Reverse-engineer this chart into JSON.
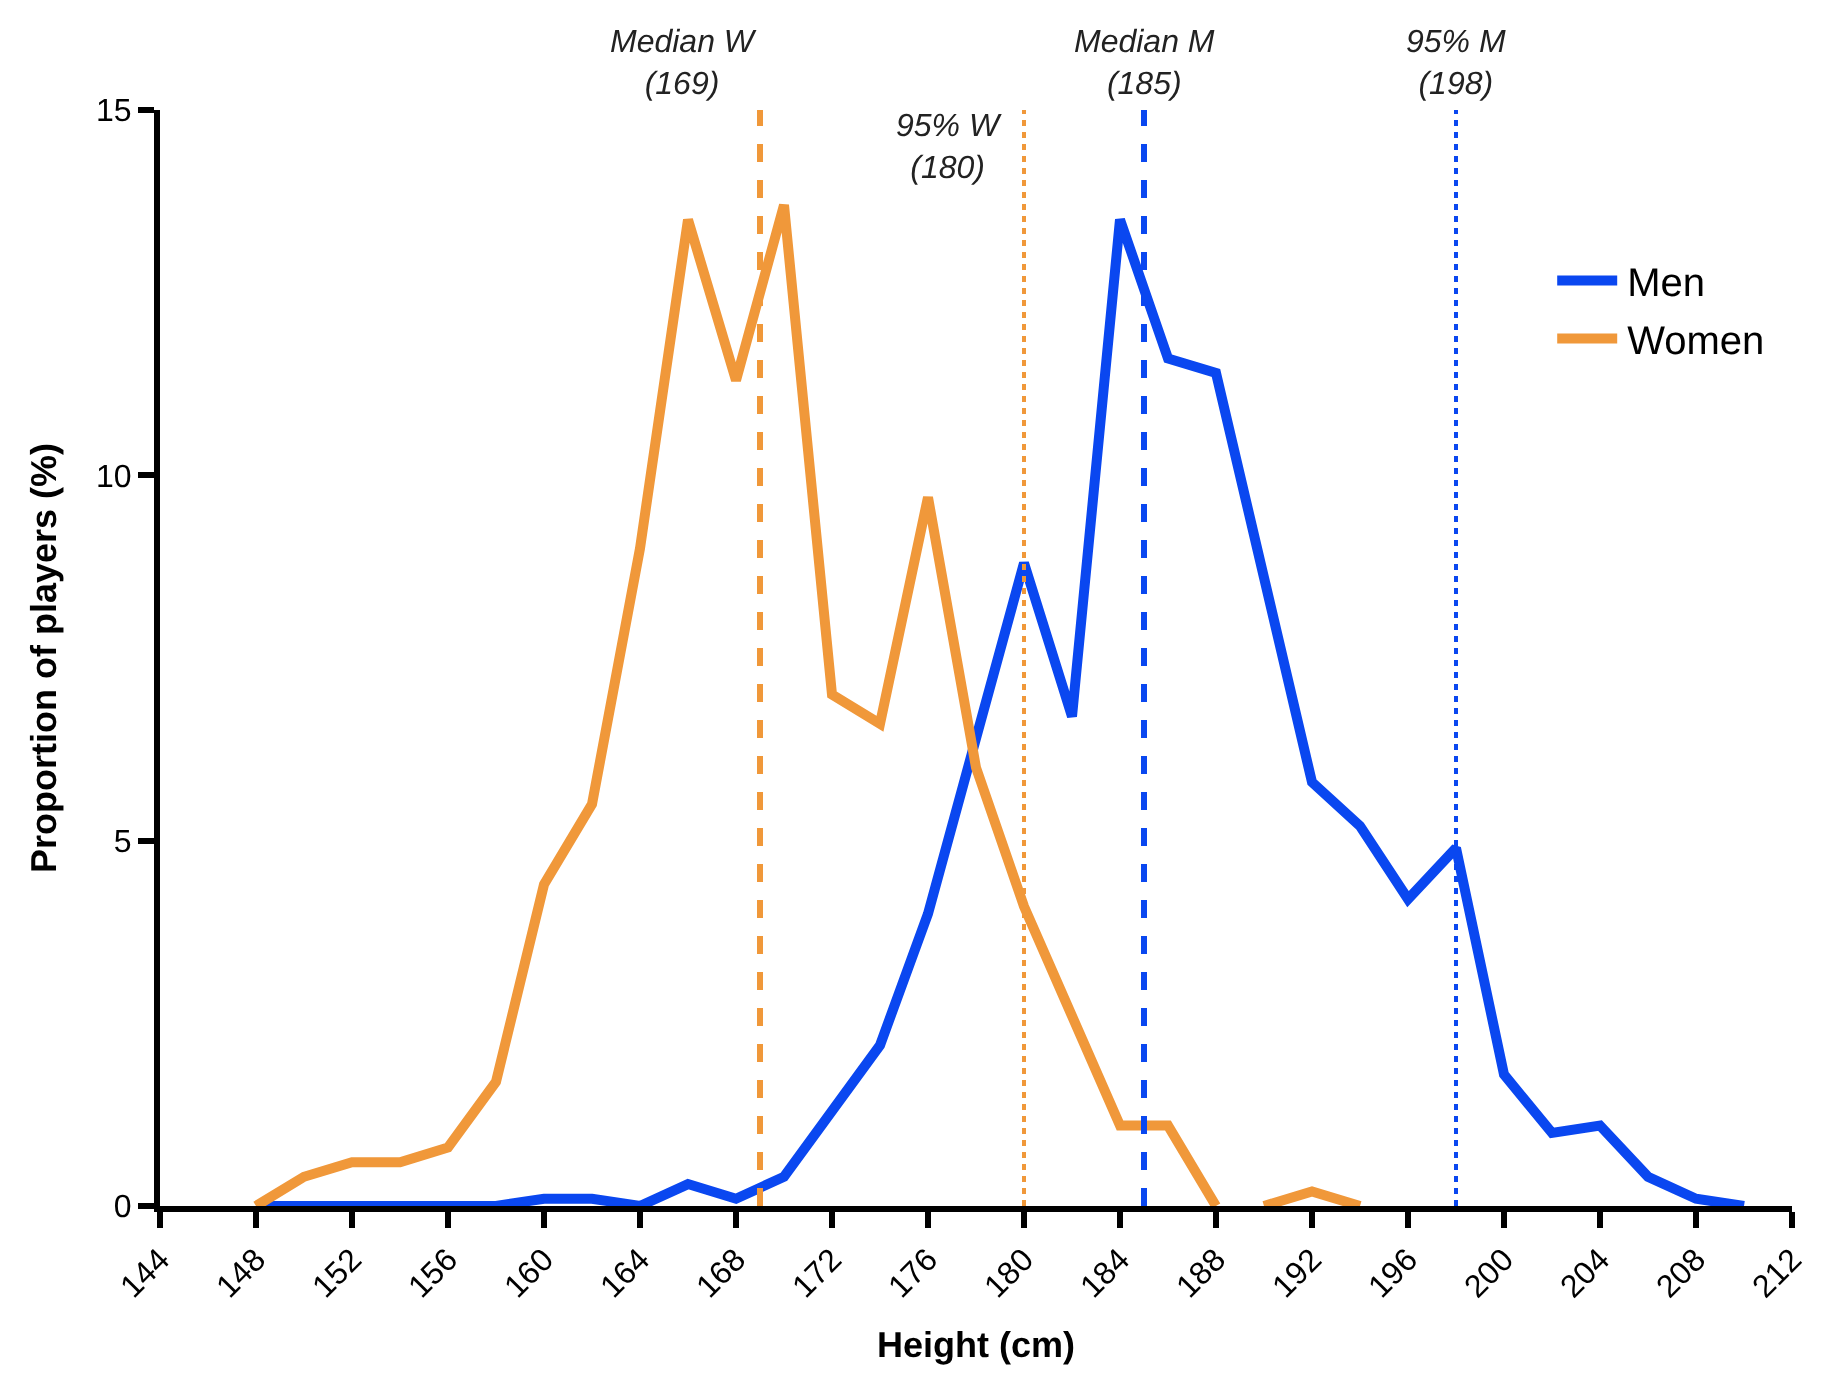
{
  "chart_data": {
    "type": "line",
    "xlabel": "Height (cm)",
    "ylabel": "Proportion of players (%)",
    "series": [
      {
        "name": "Men",
        "color": "#0a47f0",
        "x": [
          148,
          150,
          152,
          154,
          156,
          158,
          160,
          162,
          164,
          166,
          168,
          170,
          172,
          174,
          176,
          178,
          180,
          182,
          184,
          186,
          188,
          190,
          192,
          194,
          196,
          198,
          200,
          202,
          204,
          206,
          208,
          210
        ],
        "values": [
          0,
          0,
          0,
          0,
          0,
          0,
          0.1,
          0.1,
          0,
          0.3,
          0.1,
          0.4,
          1.3,
          2.2,
          4.0,
          6.4,
          8.8,
          6.7,
          13.5,
          11.6,
          11.4,
          8.6,
          5.8,
          5.2,
          4.2,
          4.9,
          1.8,
          1.0,
          1.1,
          0.4,
          0.1,
          0
        ]
      },
      {
        "name": "Women",
        "color": "#f0983a",
        "x": [
          148,
          150,
          152,
          154,
          156,
          158,
          160,
          162,
          164,
          166,
          168,
          170,
          172,
          174,
          176,
          178,
          180,
          182,
          184,
          186,
          188,
          189,
          190,
          192,
          194
        ],
        "values": [
          0,
          0.4,
          0.6,
          0.6,
          0.8,
          1.7,
          4.4,
          5.5,
          9.0,
          13.5,
          11.3,
          13.7,
          7.0,
          6.6,
          9.7,
          6.0,
          4.1,
          2.6,
          1.1,
          1.1,
          0,
          null,
          0,
          0.2,
          0
        ]
      }
    ],
    "ref_lines": [
      {
        "axis": "x",
        "value": 169,
        "label": "Median W\n(169)",
        "color": "#f0983a",
        "line_style": "dashed"
      },
      {
        "axis": "x",
        "value": 180,
        "label": "95% W\n(180)",
        "color": "#f0983a",
        "line_style": "dotted"
      },
      {
        "axis": "x",
        "value": 185,
        "label": "Median M\n(185)",
        "color": "#0a47f0",
        "line_style": "dashed"
      },
      {
        "axis": "x",
        "value": 198,
        "label": "95% M\n(198)",
        "color": "#0a47f0",
        "line_style": "dotted"
      }
    ],
    "xlim": [
      144,
      212
    ],
    "xticks": [
      144,
      148,
      152,
      156,
      160,
      164,
      168,
      172,
      176,
      180,
      184,
      188,
      192,
      196,
      200,
      204,
      208,
      212
    ],
    "ylim": [
      0,
      15
    ],
    "yticks": [
      0,
      5,
      10,
      15
    ],
    "legend": "top right",
    "marker": "none",
    "line_style": "solid"
  }
}
